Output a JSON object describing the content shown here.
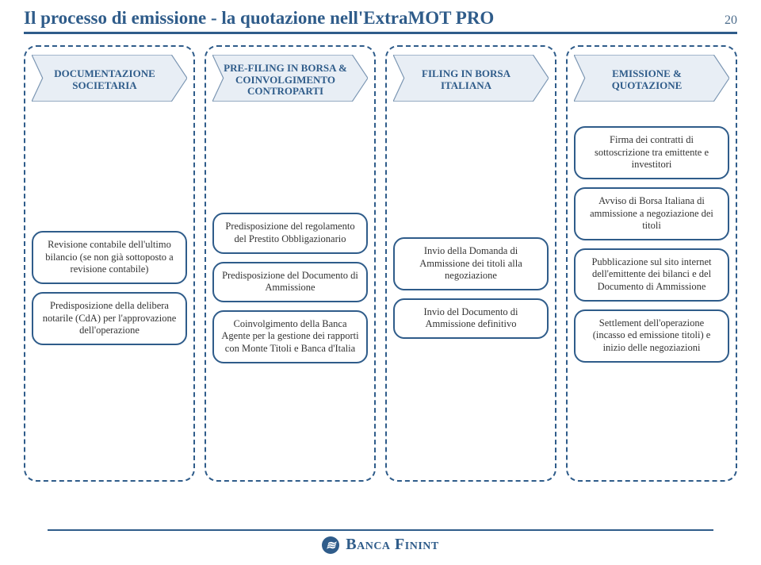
{
  "colors": {
    "accent": "#2f5c8a",
    "stage_fill": "#e8eef5",
    "stage_stroke": "#7a95b2",
    "text": "#333333"
  },
  "title": "Il processo di emissione - la quotazione nell'ExtraMOT PRO",
  "page_number": "20",
  "title_fontsize": 23,
  "columns": [
    {
      "stage": "DOCUMENTAZIONE SOCIETARIA",
      "layout": "center",
      "boxes": [
        "Revisione contabile dell'ultimo bilancio (se non già sottoposto a revisione contabile)",
        "Predisposizione della delibera notarile (CdA) per l'approvazione dell'operazione"
      ]
    },
    {
      "stage": "PRE-FILING IN BORSA & COINVOLGIMENTO CONTROPARTI",
      "layout": "center",
      "boxes": [
        "Predisposizione del regolamento del Prestito Obbligazionario",
        "Predisposizione del Documento di Ammissione",
        "Coinvolgimento della Banca Agente per la gestione dei rapporti con Monte Titoli e Banca d'Italia"
      ]
    },
    {
      "stage": "FILING IN BORSA ITALIANA",
      "layout": "center",
      "boxes": [
        "Invio della Domanda di Ammissione dei titoli alla negoziazione",
        "Invio del Documento di Ammissione definitivo"
      ]
    },
    {
      "stage": "EMISSIONE & QUOTAZIONE",
      "layout": "top",
      "boxes": [
        "Firma dei contratti di sottoscrizione tra emittente e investitori",
        "Avviso di Borsa Italiana di ammissione a negoziazione dei titoli",
        "Pubblicazione sul sito internet dell'emittente dei bilanci e del Documento di Ammissione",
        "Settlement dell'operazione (incasso ed emissione titoli) e inizio delle negoziazioni"
      ]
    }
  ],
  "footer_bank": "Banca Finint",
  "footer_logo_char": "≋"
}
